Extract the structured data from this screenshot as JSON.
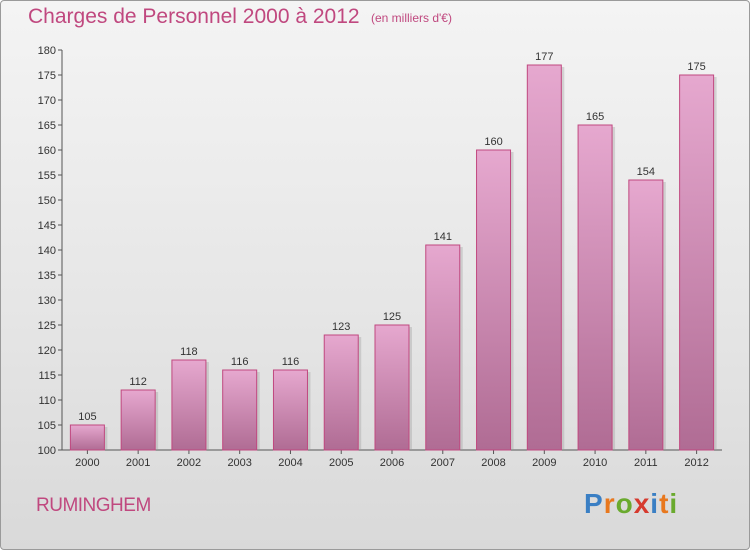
{
  "title": "Charges de Personnel 2000 à 2012",
  "subtitle": "(en milliers d'€)",
  "commune": "RUMINGHEM",
  "logo": {
    "letters": [
      "P",
      "r",
      "o",
      "x",
      "i",
      "t",
      "i"
    ],
    "colors": [
      "#3a7fc4",
      "#e8781e",
      "#6aaa2e",
      "#d63a2e",
      "#3a7fc4",
      "#e8781e",
      "#6aaa2e"
    ]
  },
  "colors": {
    "bar_top": "#e6a8cf",
    "bar_bottom": "#b06c94",
    "bar_border": "#c0487f",
    "text_accent": "#c0487f"
  },
  "chart_data": {
    "type": "bar",
    "title": "Charges de Personnel 2000 à 2012",
    "subtitle": "(en milliers d'€)",
    "categories": [
      "2000",
      "2001",
      "2002",
      "2003",
      "2004",
      "2005",
      "2006",
      "2007",
      "2008",
      "2009",
      "2010",
      "2011",
      "2012"
    ],
    "values": [
      105,
      112,
      118,
      116,
      116,
      123,
      125,
      141,
      160,
      177,
      165,
      154,
      175
    ],
    "ylim": [
      100,
      180
    ],
    "yticks": [
      100,
      105,
      110,
      115,
      120,
      125,
      130,
      135,
      140,
      145,
      150,
      155,
      160,
      165,
      170,
      175,
      180
    ],
    "grid": false,
    "legend": "none"
  }
}
